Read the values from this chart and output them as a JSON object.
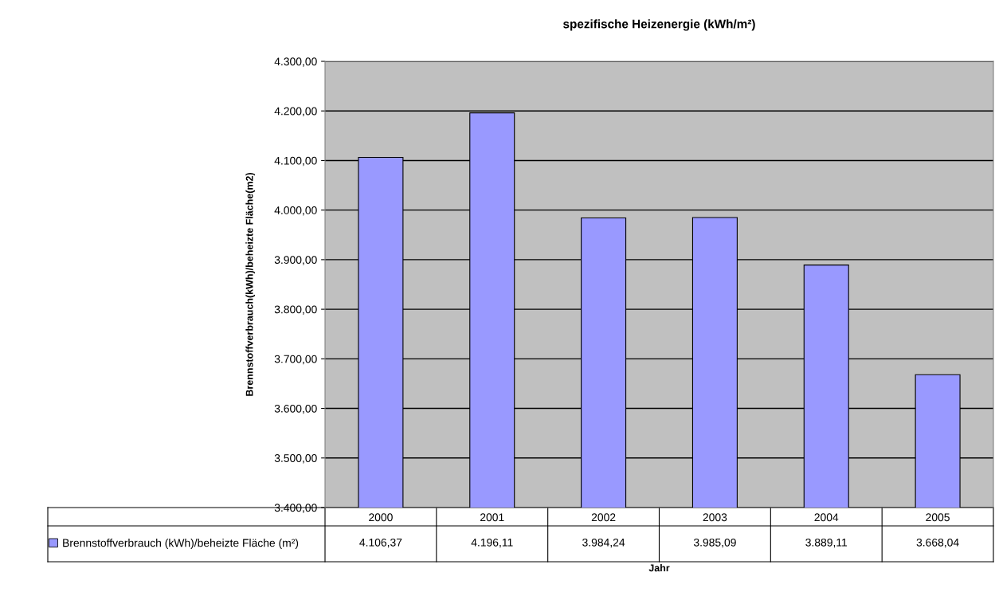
{
  "chart_data": {
    "type": "bar",
    "title": "spezifische Heizenergie (kWh/m²)",
    "xlabel": "Jahr",
    "ylabel": "Brennstoffverbrauch(kWh)/beheizte Fläche(m2)",
    "categories": [
      "2000",
      "2001",
      "2002",
      "2003",
      "2004",
      "2005"
    ],
    "series": [
      {
        "name": "Brennstoffverbrauch (kWh)/beheizte Fläche (m²)",
        "color": "#9999ff",
        "values": [
          4106.37,
          4196.11,
          3984.24,
          3985.09,
          3889.11,
          3668.04
        ],
        "value_labels": [
          "4.106,37",
          "4.196,11",
          "3.984,24",
          "3.985,09",
          "3.889,11",
          "3.668,04"
        ]
      }
    ],
    "ylim": [
      3400,
      4300
    ],
    "yticks": [
      {
        "value": 3400,
        "label": "3.400,00"
      },
      {
        "value": 3500,
        "label": "3.500,00"
      },
      {
        "value": 3600,
        "label": "3.600,00"
      },
      {
        "value": 3700,
        "label": "3.700,00"
      },
      {
        "value": 3800,
        "label": "3.800,00"
      },
      {
        "value": 3900,
        "label": "3.900,00"
      },
      {
        "value": 4000,
        "label": "4.000,00"
      },
      {
        "value": 4100,
        "label": "4.100,00"
      },
      {
        "value": 4200,
        "label": "4.200,00"
      },
      {
        "value": 4300,
        "label": "4.300,00"
      }
    ],
    "grid": "y",
    "legend": "bottom",
    "data_labels": true
  }
}
